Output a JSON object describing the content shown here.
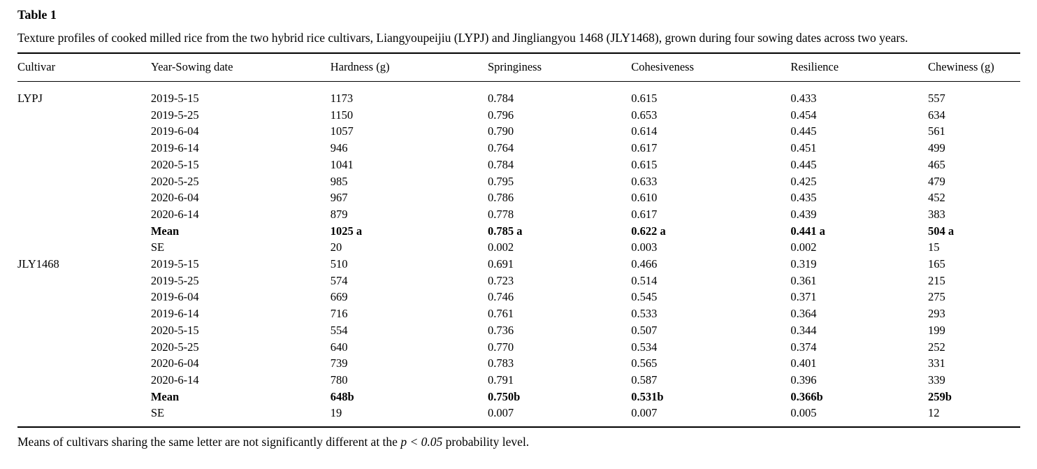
{
  "page": {
    "title": "Table 1",
    "caption": "Texture profiles of cooked milled rice from the two hybrid rice cultivars, Liangyoupeijiu (LYPJ) and Jingliangyou 1468 (JLY1468), grown during four sowing dates across two years."
  },
  "table": {
    "columns": [
      "Cultivar",
      "Year-Sowing date",
      "Hardness (g)",
      "Springiness",
      "Cohesiveness",
      "Resilience",
      "Chewiness (g)"
    ],
    "column_keys": [
      "cultivar",
      "year-sowing-date",
      "hardness",
      "springiness",
      "cohesiveness",
      "resilience",
      "chewiness"
    ],
    "rows": [
      {
        "bold": false,
        "cells": [
          "LYPJ",
          "2019-5-15",
          "1173",
          "0.784",
          "0.615",
          "0.433",
          "557"
        ]
      },
      {
        "bold": false,
        "cells": [
          "",
          "2019-5-25",
          "1150",
          "0.796",
          "0.653",
          "0.454",
          "634"
        ]
      },
      {
        "bold": false,
        "cells": [
          "",
          "2019-6-04",
          "1057",
          "0.790",
          "0.614",
          "0.445",
          "561"
        ]
      },
      {
        "bold": false,
        "cells": [
          "",
          "2019-6-14",
          "946",
          "0.764",
          "0.617",
          "0.451",
          "499"
        ]
      },
      {
        "bold": false,
        "cells": [
          "",
          "2020-5-15",
          "1041",
          "0.784",
          "0.615",
          "0.445",
          "465"
        ]
      },
      {
        "bold": false,
        "cells": [
          "",
          "2020-5-25",
          "985",
          "0.795",
          "0.633",
          "0.425",
          "479"
        ]
      },
      {
        "bold": false,
        "cells": [
          "",
          "2020-6-04",
          "967",
          "0.786",
          "0.610",
          "0.435",
          "452"
        ]
      },
      {
        "bold": false,
        "cells": [
          "",
          "2020-6-14",
          "879",
          "0.778",
          "0.617",
          "0.439",
          "383"
        ]
      },
      {
        "bold": true,
        "cells": [
          "",
          "Mean",
          "1025 a",
          "0.785 a",
          "0.622 a",
          "0.441 a",
          "504 a"
        ]
      },
      {
        "bold": false,
        "cells": [
          "",
          "SE",
          "20",
          "0.002",
          "0.003",
          "0.002",
          "15"
        ]
      },
      {
        "bold": false,
        "cells": [
          "JLY1468",
          "2019-5-15",
          "510",
          "0.691",
          "0.466",
          "0.319",
          "165"
        ]
      },
      {
        "bold": false,
        "cells": [
          "",
          "2019-5-25",
          "574",
          "0.723",
          "0.514",
          "0.361",
          "215"
        ]
      },
      {
        "bold": false,
        "cells": [
          "",
          "2019-6-04",
          "669",
          "0.746",
          "0.545",
          "0.371",
          "275"
        ]
      },
      {
        "bold": false,
        "cells": [
          "",
          "2019-6-14",
          "716",
          "0.761",
          "0.533",
          "0.364",
          "293"
        ]
      },
      {
        "bold": false,
        "cells": [
          "",
          "2020-5-15",
          "554",
          "0.736",
          "0.507",
          "0.344",
          "199"
        ]
      },
      {
        "bold": false,
        "cells": [
          "",
          "2020-5-25",
          "640",
          "0.770",
          "0.534",
          "0.374",
          "252"
        ]
      },
      {
        "bold": false,
        "cells": [
          "",
          "2020-6-04",
          "739",
          "0.783",
          "0.565",
          "0.401",
          "331"
        ]
      },
      {
        "bold": false,
        "cells": [
          "",
          "2020-6-14",
          "780",
          "0.791",
          "0.587",
          "0.396",
          "339"
        ]
      },
      {
        "bold": true,
        "cells": [
          "",
          "Mean",
          "648b",
          "0.750b",
          "0.531b",
          "0.366b",
          "259b"
        ]
      },
      {
        "bold": false,
        "cells": [
          "",
          "SE",
          "19",
          "0.007",
          "0.007",
          "0.005",
          "12"
        ]
      }
    ]
  },
  "footnote": {
    "text_before": "Means of cultivars sharing the same letter are not significantly different at the ",
    "italic": "p < 0.05",
    "text_after": " probability level."
  }
}
